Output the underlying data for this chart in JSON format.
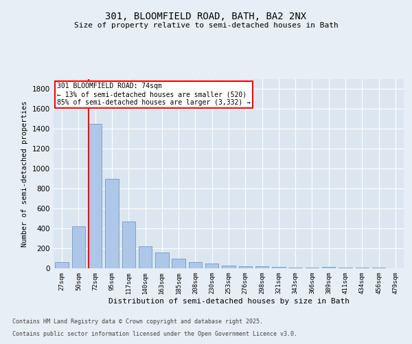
{
  "title": "301, BLOOMFIELD ROAD, BATH, BA2 2NX",
  "subtitle": "Size of property relative to semi-detached houses in Bath",
  "xlabel": "Distribution of semi-detached houses by size in Bath",
  "ylabel": "Number of semi-detached properties",
  "categories": [
    "27sqm",
    "50sqm",
    "72sqm",
    "95sqm",
    "117sqm",
    "140sqm",
    "163sqm",
    "185sqm",
    "208sqm",
    "230sqm",
    "253sqm",
    "276sqm",
    "298sqm",
    "321sqm",
    "343sqm",
    "366sqm",
    "389sqm",
    "411sqm",
    "434sqm",
    "456sqm",
    "479sqm"
  ],
  "values": [
    60,
    420,
    1450,
    900,
    470,
    220,
    160,
    100,
    60,
    45,
    30,
    22,
    18,
    14,
    10,
    5,
    15,
    5,
    4,
    4,
    2
  ],
  "bar_color": "#aec6e8",
  "bar_edge_color": "#5a8fc0",
  "highlight_index": 2,
  "ylim": [
    0,
    1900
  ],
  "yticks": [
    0,
    200,
    400,
    600,
    800,
    1000,
    1200,
    1400,
    1600,
    1800
  ],
  "background_color": "#e8eef5",
  "plot_bg_color": "#dce6f0",
  "grid_color": "#ffffff",
  "annotation_text": "301 BLOOMFIELD ROAD: 74sqm\n← 13% of semi-detached houses are smaller (520)\n85% of semi-detached houses are larger (3,332) →",
  "footer_line1": "Contains HM Land Registry data © Crown copyright and database right 2025.",
  "footer_line2": "Contains public sector information licensed under the Open Government Licence v3.0."
}
